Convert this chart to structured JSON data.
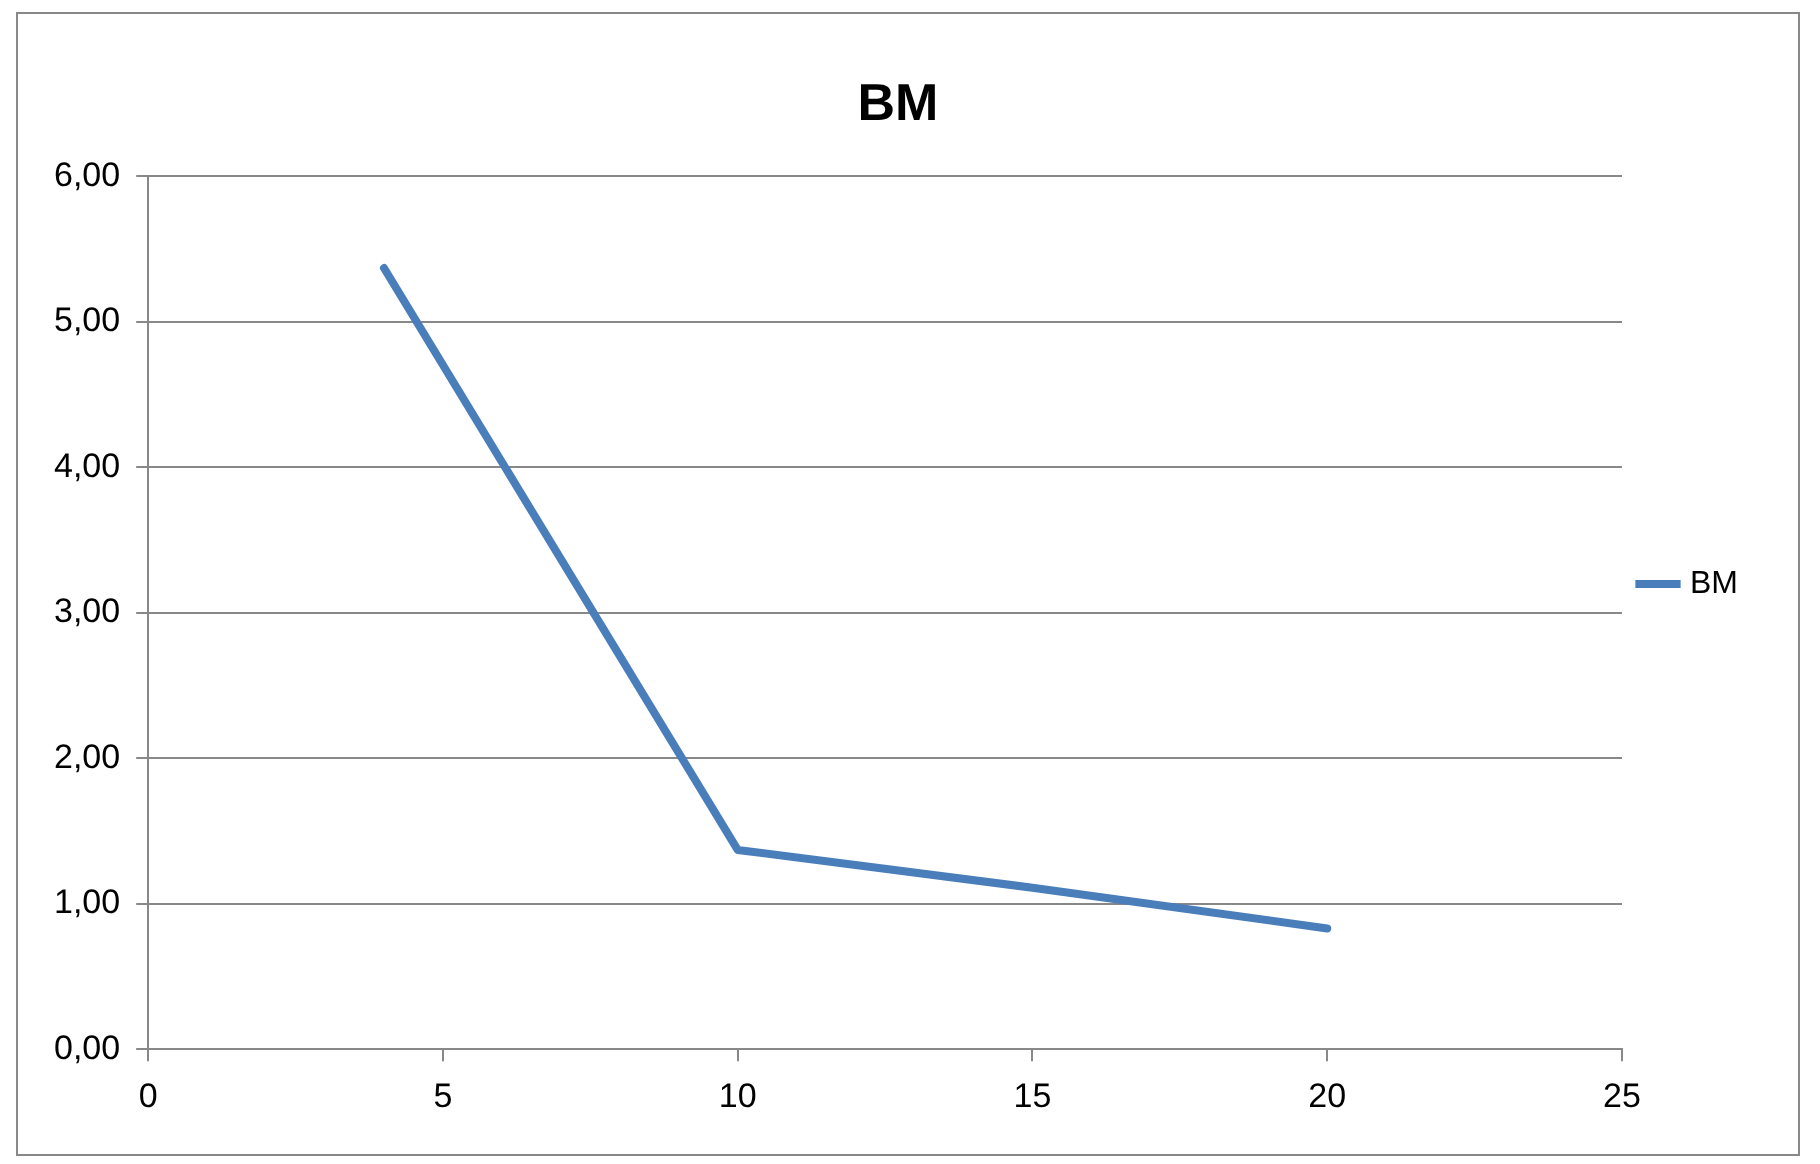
{
  "chart_data": {
    "type": "line",
    "title": "BM",
    "series": [
      {
        "name": "BM",
        "color": "#4a7ebb",
        "x": [
          4,
          10,
          15,
          20
        ],
        "values": [
          5.37,
          1.37,
          1.11,
          0.83
        ]
      }
    ],
    "xlim": [
      0,
      25
    ],
    "xticks": [
      0,
      5,
      10,
      15,
      20,
      25
    ],
    "ylim": [
      0,
      6
    ],
    "yticks": [
      {
        "value": 0,
        "label": "0,00"
      },
      {
        "value": 1,
        "label": "1,00"
      },
      {
        "value": 2,
        "label": "2,00"
      },
      {
        "value": 3,
        "label": "3,00"
      },
      {
        "value": 4,
        "label": "4,00"
      },
      {
        "value": 5,
        "label": "5,00"
      },
      {
        "value": 6,
        "label": "6,00"
      }
    ],
    "grid": "y",
    "legend": "right",
    "marker": "none",
    "line_style": "solid"
  }
}
